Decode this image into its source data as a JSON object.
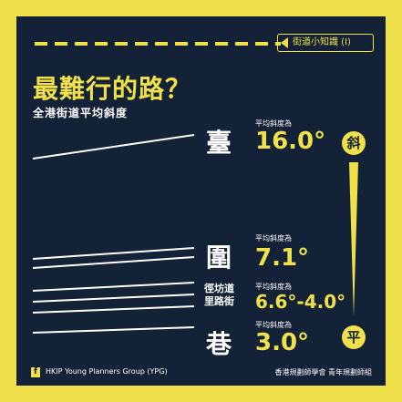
{
  "header": {
    "series_tag": "街道小知識 (I)",
    "title": "最難行的路？",
    "subtitle": "全港街道平均斜度"
  },
  "rows": [
    {
      "char": "臺",
      "caption": "平均斜度為",
      "value": "16.0°"
    },
    {
      "char": "圍",
      "caption": "平均斜度為",
      "value": "7.1°"
    },
    {
      "char_lines": [
        "徑坊道",
        "里路街"
      ],
      "caption": "平均斜度為",
      "value": "6.6°-4.0°"
    },
    {
      "char": "巷",
      "caption": "平均斜度為",
      "value": "3.0°"
    }
  ],
  "scale": {
    "top_label": "斜",
    "bottom_label": "平"
  },
  "footer": {
    "left": "HKIP Young Planners Group (YPG)",
    "right": "香港規劃師學會 青年規劃師組",
    "social_icon": "facebook-icon"
  },
  "colors": {
    "accent": "#f0e14a",
    "panel": "#142238",
    "text": "#ffffff"
  }
}
